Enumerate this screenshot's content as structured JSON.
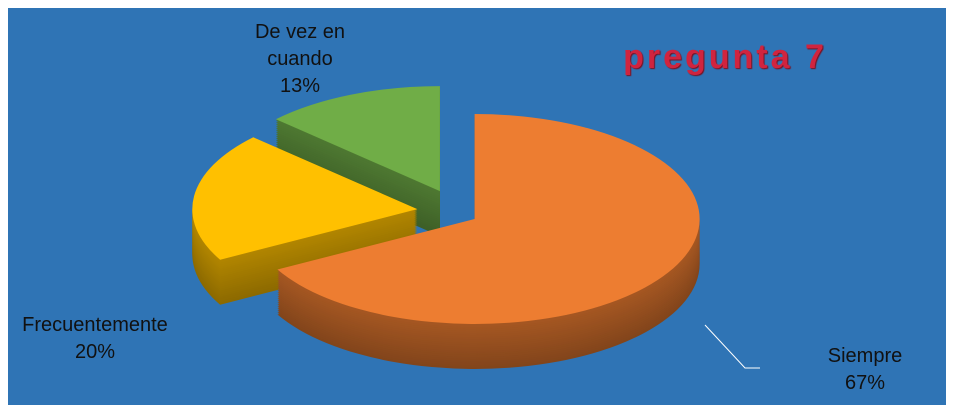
{
  "chart_data": {
    "type": "pie",
    "title": "pregunta 7",
    "categories": [
      "Siempre",
      "Frecuentemente",
      "De vez en cuando"
    ],
    "values": [
      67,
      20,
      13
    ],
    "value_labels": [
      "67%",
      "20%",
      "13%"
    ],
    "colors": [
      "#ed7d31",
      "#ffc000",
      "#70ad47"
    ]
  }
}
